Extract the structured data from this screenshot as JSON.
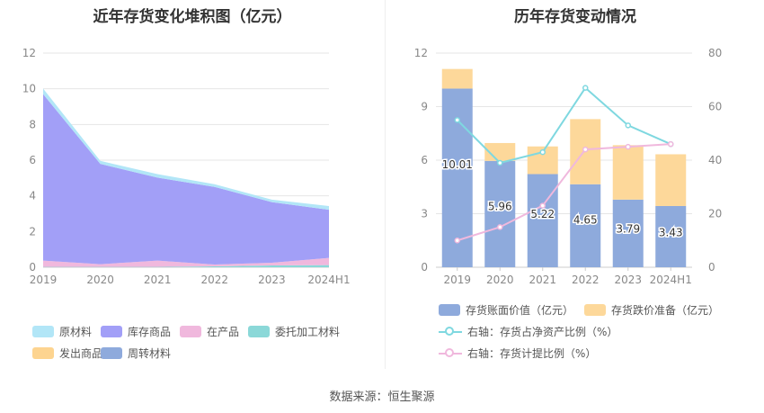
{
  "left_chart": {
    "title": "近年存货变化堆积图（亿元）"
  },
  "right_chart": {
    "title": "历年存货变动情况"
  },
  "source": "数据来源：恒生聚源",
  "chart_data": [
    {
      "type": "area",
      "title": "近年存货变化堆积图（亿元）",
      "categories": [
        "2019",
        "2020",
        "2021",
        "2022",
        "2023",
        "2024H1"
      ],
      "ylim": [
        0,
        12
      ],
      "yticks": [
        "0",
        "2",
        "4",
        "6",
        "8",
        "10",
        "12"
      ],
      "grid": true,
      "legend_position": "bottom",
      "stacked": true,
      "series": [
        {
          "name": "委托加工材料",
          "color": "#8bd8d8",
          "values": [
            0.02,
            0.02,
            0.02,
            0.05,
            0.1,
            0.12
          ]
        },
        {
          "name": "在产品",
          "color": "#f0b8dd",
          "values": [
            0.35,
            0.15,
            0.35,
            0.1,
            0.15,
            0.4
          ]
        },
        {
          "name": "库存商品",
          "color": "#a29ff7",
          "values": [
            9.33,
            5.62,
            4.65,
            4.35,
            3.4,
            2.7
          ]
        },
        {
          "name": "原材料",
          "color": "#b2e6f7",
          "values": [
            0.31,
            0.17,
            0.2,
            0.15,
            0.14,
            0.21
          ]
        },
        {
          "name": "发出商品",
          "color": "#fdd490",
          "values": [
            0,
            0,
            0,
            0,
            0,
            0
          ]
        },
        {
          "name": "周转材料",
          "color": "#8eaadc",
          "values": [
            0,
            0,
            0,
            0,
            0,
            0
          ]
        }
      ],
      "legend_order": [
        "原材料",
        "库存商品",
        "在产品",
        "委托加工材料",
        "发出商品",
        "周转材料"
      ]
    },
    {
      "type": "bar",
      "title": "历年存货变动情况",
      "categories": [
        "2019",
        "2020",
        "2021",
        "2022",
        "2023",
        "2024H1"
      ],
      "ylim": [
        0,
        12
      ],
      "yticks": [
        "0",
        "3",
        "6",
        "9",
        "12"
      ],
      "y2lim": [
        0,
        80
      ],
      "y2ticks": [
        "0",
        "20",
        "40",
        "60",
        "80"
      ],
      "grid": true,
      "legend_position": "bottom",
      "series": [
        {
          "name": "存货账面价值（亿元）",
          "kind": "bar",
          "axis": "left",
          "color": "#8eaadc",
          "values": [
            10.01,
            5.96,
            5.22,
            4.65,
            3.79,
            3.43
          ],
          "labels": [
            "10.01",
            "5.96",
            "5.22",
            "4.65",
            "3.79",
            "3.43"
          ]
        },
        {
          "name": "存货跌价准备（亿元）",
          "kind": "bar",
          "axis": "left",
          "color": "#fdd89a",
          "values": [
            1.1,
            1.0,
            1.55,
            3.65,
            3.05,
            2.9
          ]
        },
        {
          "name": "右轴：存货占净资产比例（%）",
          "kind": "line",
          "axis": "right",
          "color": "#7fd8e0",
          "values": [
            55,
            39,
            43,
            67,
            53,
            46
          ]
        },
        {
          "name": "右轴：存货计提比例（%）",
          "kind": "line",
          "axis": "right",
          "color": "#f0b8dd",
          "values": [
            10,
            15,
            23,
            44,
            45,
            46
          ]
        }
      ]
    }
  ]
}
